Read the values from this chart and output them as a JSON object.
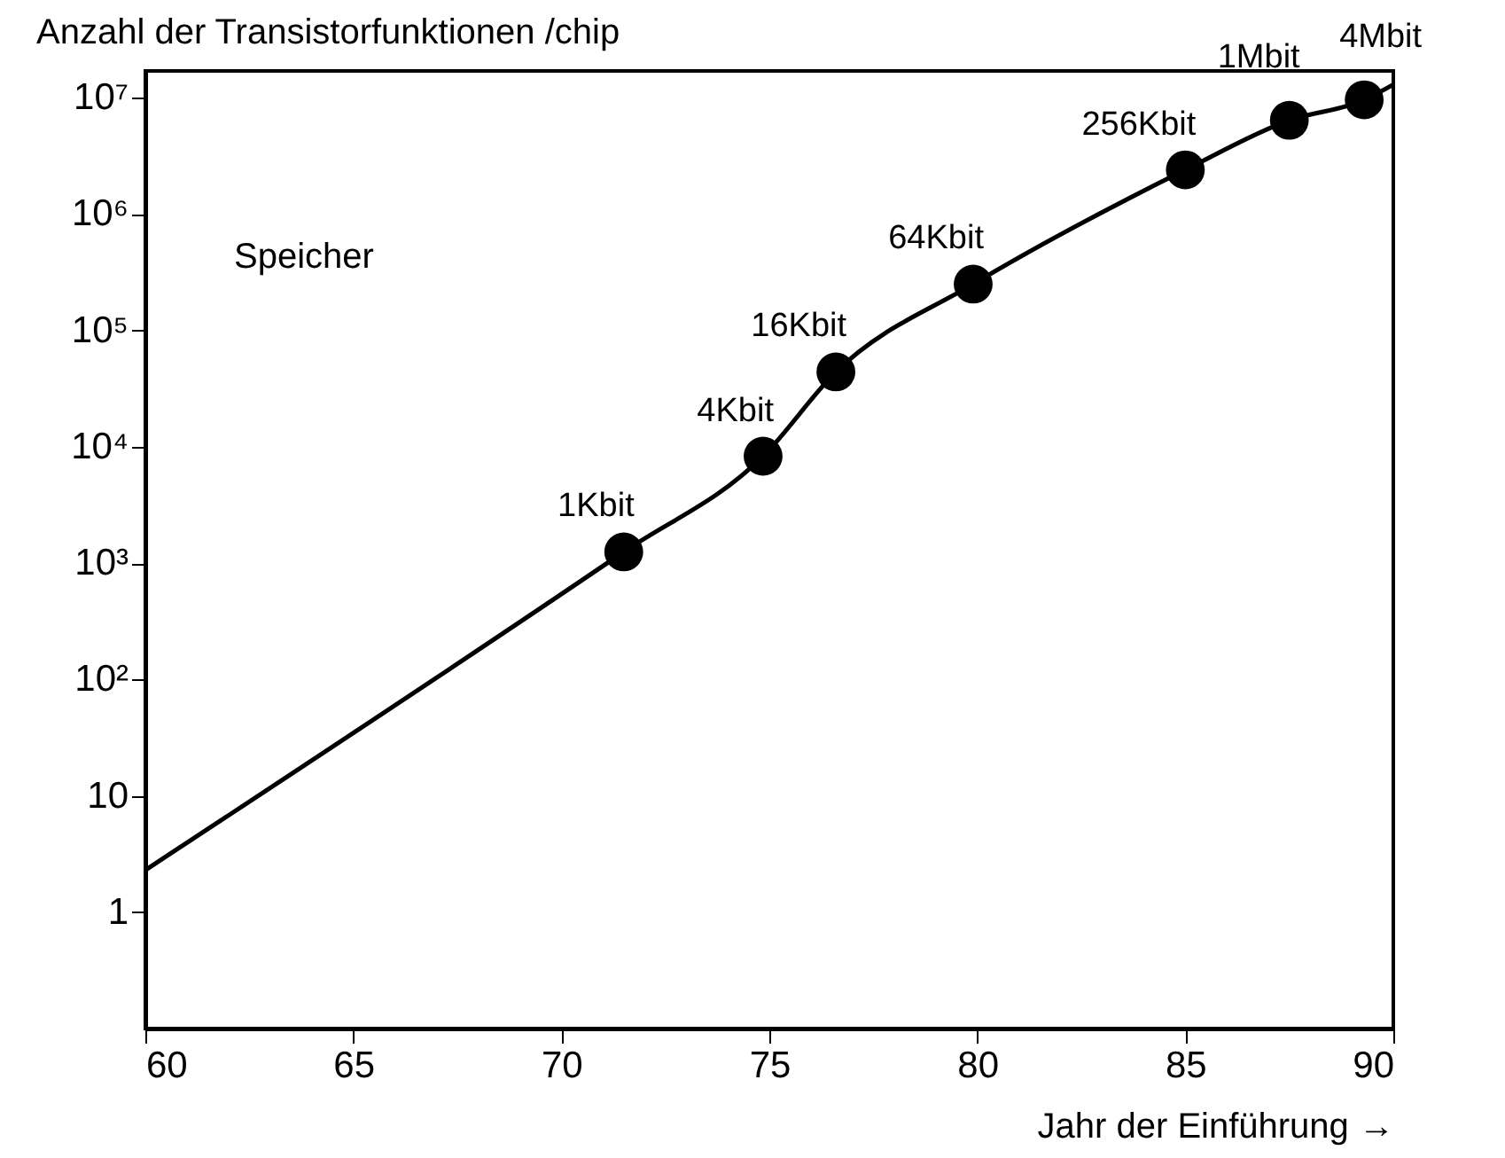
{
  "chart_data": {
    "type": "scatter",
    "xlabel": "Jahr der Einführung →",
    "ylabel": "Anzahl der Transistorfunktionen /chip",
    "log": "y",
    "grid": false,
    "xlim": [
      60,
      90
    ],
    "xticks": [
      60,
      65,
      70,
      75,
      80,
      85,
      90
    ],
    "ylim": [
      0.1,
      17000000
    ],
    "yticks": [
      1,
      10,
      {
        "value": 100,
        "label": "10²"
      },
      {
        "value": 1000,
        "label": "10³"
      },
      {
        "value": 10000,
        "label": "10⁴"
      },
      {
        "value": 100000,
        "label": "10⁵"
      },
      {
        "value": 1000000,
        "label": "10⁶"
      },
      {
        "value": 10000000,
        "label": "10⁷"
      }
    ],
    "annotations": [
      "Speicher",
      {
        "text": "1Kbit",
        "x": 71.5,
        "y": 1250
      },
      {
        "text": "4Kbit",
        "x": 74.85,
        "y": 8300
      },
      {
        "text": "16Kbit",
        "x": 76.6,
        "y": 44000
      },
      {
        "text": "64Kbit",
        "x": 79.9,
        "y": 250000
      },
      {
        "text": "256Kbit",
        "x": 85,
        "y": 2400000
      },
      {
        "text": "1Mbit",
        "x": 87.5,
        "y": 6400000
      },
      {
        "text": "4Mbit",
        "x": 89.3,
        "y": 9600000
      }
    ],
    "series": [
      {
        "type": "scatter",
        "color": "#000000",
        "marker": "circle",
        "x": [
          71.5,
          74.85,
          76.6,
          79.9,
          85,
          87.5,
          89.3
        ],
        "values": [
          1250,
          8300,
          44000,
          250000,
          2400000,
          6400000,
          9600000
        ]
      },
      {
        "type": "line",
        "color": "#000000",
        "x": [
          60,
          71.5,
          74.85,
          76.6,
          79.9,
          85,
          87.5,
          89.3,
          90
        ],
        "values": [
          2.3,
          1250,
          8300,
          44000,
          250000,
          2400000,
          6400000,
          9600000,
          13000000
        ]
      }
    ]
  }
}
